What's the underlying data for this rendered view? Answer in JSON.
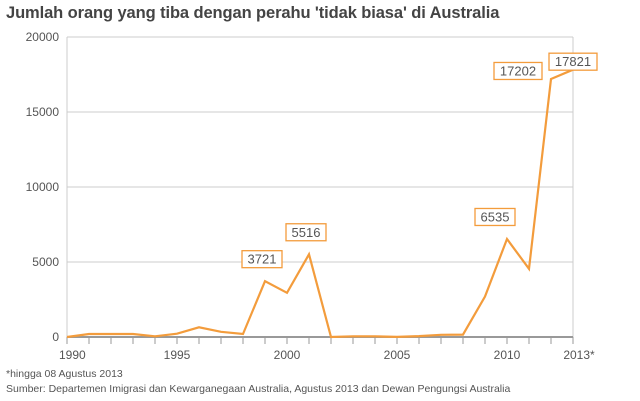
{
  "header": {
    "title": "Jumlah orang yang tiba dengan perahu 'tidak biasa' di Australia"
  },
  "footer": {
    "note": "*hingga 08 Agustus 2013",
    "source": "Sumber: Departemen Imigrasi dan Kewarganegaan Australia, Agustus 2013 dan Dewan Pengungsi Australia"
  },
  "colors": {
    "line": "#f39c3c",
    "grid": "#cccccc",
    "axis": "#999999",
    "text": "#555555"
  },
  "chart_data": {
    "type": "line",
    "title": "Jumlah orang yang tiba dengan perahu 'tidak biasa' di Australia",
    "xlabel": "",
    "ylabel": "",
    "x": [
      1990,
      1991,
      1992,
      1993,
      1994,
      1995,
      1996,
      1997,
      1998,
      1999,
      2000,
      2001,
      2002,
      2003,
      2004,
      2005,
      2006,
      2007,
      2008,
      2009,
      2010,
      2011,
      2012,
      2013
    ],
    "values": [
      0,
      200,
      200,
      200,
      50,
      220,
      650,
      350,
      200,
      3721,
      2950,
      5516,
      0,
      50,
      50,
      10,
      60,
      150,
      160,
      2700,
      6535,
      4550,
      17202,
      17821
    ],
    "ylim": [
      0,
      20000
    ],
    "yticks": [
      0,
      5000,
      10000,
      15000,
      20000
    ],
    "xtick_labels": [
      "1990",
      "1995",
      "2000",
      "2005",
      "2010",
      "2013*"
    ],
    "xtick_positions": [
      1990,
      1995,
      2000,
      2005,
      2010,
      2013
    ],
    "annotations": [
      {
        "x": 1999,
        "value": 3721,
        "label": "3721"
      },
      {
        "x": 2001,
        "value": 5516,
        "label": "5516"
      },
      {
        "x": 2010,
        "value": 6535,
        "label": "6535"
      },
      {
        "x": 2012,
        "value": 17202,
        "label": "17202"
      },
      {
        "x": 2013,
        "value": 17821,
        "label": "17821"
      }
    ],
    "grid": true,
    "legend": null
  }
}
